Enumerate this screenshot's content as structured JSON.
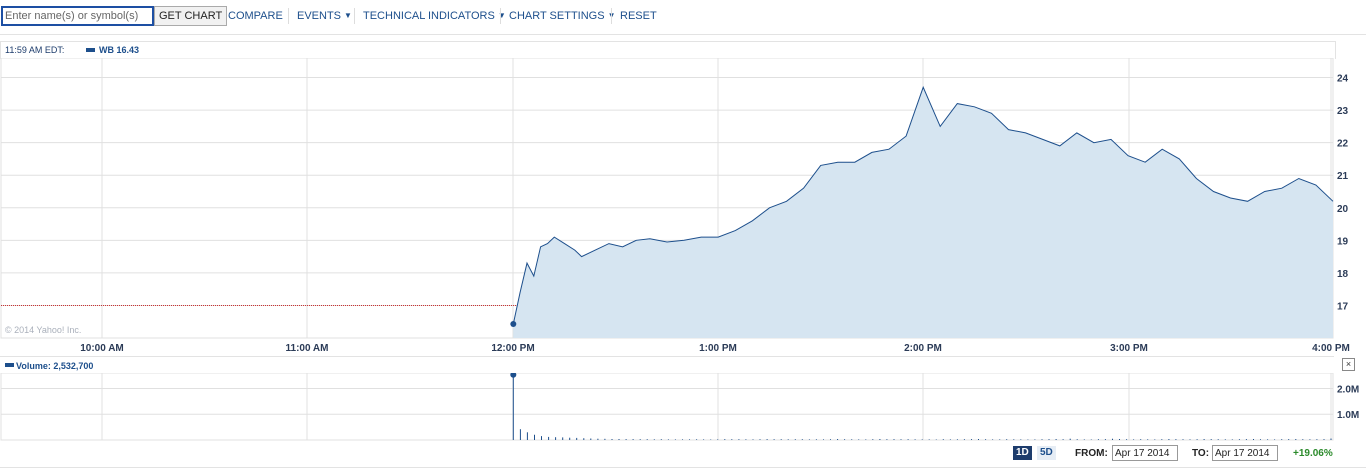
{
  "toolbar": {
    "symbol_placeholder": "Enter name(s) or symbol(s)",
    "get_chart_label": "GET CHART",
    "compare_label": "COMPARE",
    "events_label": "EVENTS",
    "technical_label": "TECHNICAL INDICATORS",
    "settings_label": "CHART SETTINGS",
    "reset_label": "RESET"
  },
  "price_header": {
    "time": "11:59 AM EDT:",
    "series_label": "WB 16.43"
  },
  "copyright": "© 2014 Yahoo! Inc.",
  "volume_header": {
    "label": "Volume: 2,532,700"
  },
  "footer": {
    "range_1d": "1D",
    "range_5d": "5D",
    "from_label": "FROM:",
    "from_value": "Apr 17 2014",
    "to_label": "TO:",
    "to_value": "Apr 17 2014",
    "change": "+19.06%"
  },
  "colors": {
    "line": "#1d4f8c",
    "fill": "#d6e5f1",
    "grid": "#e0e0e0",
    "ref_line": "#cc3333",
    "change_positive": "#2a8a2a"
  },
  "chart_data": [
    {
      "type": "area",
      "series_name": "WB",
      "x_ticks": [
        "10:00 AM",
        "11:00 AM",
        "12:00 PM",
        "1:00 PM",
        "2:00 PM",
        "3:00 PM",
        "4:00 PM"
      ],
      "y_ticks": [
        17,
        18,
        19,
        20,
        21,
        22,
        23,
        24
      ],
      "ylim": [
        16.0,
        24.6
      ],
      "reference_value": 17.0,
      "x": [
        "12:00",
        "12:02",
        "12:04",
        "12:06",
        "12:08",
        "12:10",
        "12:12",
        "12:15",
        "12:18",
        "12:20",
        "12:24",
        "12:28",
        "12:32",
        "12:36",
        "12:40",
        "12:45",
        "12:50",
        "12:55",
        "13:00",
        "13:05",
        "13:10",
        "13:15",
        "13:20",
        "13:25",
        "13:30",
        "13:35",
        "13:40",
        "13:45",
        "13:50",
        "13:55",
        "14:00",
        "14:05",
        "14:10",
        "14:15",
        "14:20",
        "14:25",
        "14:30",
        "14:35",
        "14:40",
        "14:45",
        "14:50",
        "14:55",
        "15:00",
        "15:05",
        "15:10",
        "15:15",
        "15:20",
        "15:25",
        "15:30",
        "15:35",
        "15:40",
        "15:45",
        "15:50",
        "15:55",
        "16:00"
      ],
      "values": [
        16.43,
        17.4,
        18.3,
        17.9,
        18.8,
        18.9,
        19.1,
        18.9,
        18.7,
        18.5,
        18.7,
        18.9,
        18.8,
        19.0,
        19.05,
        18.95,
        19.0,
        19.1,
        19.1,
        19.3,
        19.6,
        20.0,
        20.2,
        20.6,
        21.3,
        21.4,
        21.4,
        21.7,
        21.8,
        22.2,
        23.7,
        22.5,
        23.2,
        23.1,
        22.9,
        22.4,
        22.3,
        22.1,
        21.9,
        22.3,
        22.0,
        22.1,
        21.6,
        21.4,
        21.8,
        21.5,
        20.9,
        20.5,
        20.3,
        20.2,
        20.5,
        20.6,
        20.9,
        20.7,
        20.2
      ]
    },
    {
      "type": "bar",
      "series_name": "Volume",
      "y_ticks": [
        "1.0M",
        "2.0M"
      ],
      "ylim": [
        0,
        2600000
      ],
      "values": [
        2532700,
        420000,
        300000,
        200000,
        150000,
        120000,
        110000,
        100000,
        90000,
        80000,
        70000,
        60000,
        50000,
        45000,
        40000,
        40000,
        35000,
        35000,
        30000,
        30000,
        28000,
        30000,
        25000,
        25000,
        22000,
        25000,
        28000,
        22000,
        20000,
        22000,
        35000,
        30000,
        30000,
        28000,
        25000,
        30000,
        35000,
        32000,
        30000,
        28000,
        30000,
        30000,
        25000,
        28000,
        25000,
        30000,
        40000,
        30000,
        28000,
        25000,
        22000,
        30000,
        40000,
        30000,
        35000,
        30000,
        32000,
        28000,
        25000,
        22000,
        20000,
        30000,
        25000,
        28000,
        30000,
        35000,
        40000,
        30000,
        25000,
        22000,
        30000,
        28000,
        25000,
        20000,
        25000,
        30000,
        35000,
        40000,
        30000,
        50000,
        30000,
        25000,
        20000,
        30000,
        35000,
        45000,
        40000,
        30000,
        25000,
        30000,
        28000,
        25000,
        30000,
        40000,
        35000,
        30000,
        25000,
        30000,
        40000,
        35000,
        30000,
        28000,
        25000,
        30000,
        35000,
        40000,
        30000,
        28000,
        25000,
        30000,
        35000,
        40000,
        30000,
        28000,
        30000,
        35000,
        60000
      ]
    }
  ]
}
